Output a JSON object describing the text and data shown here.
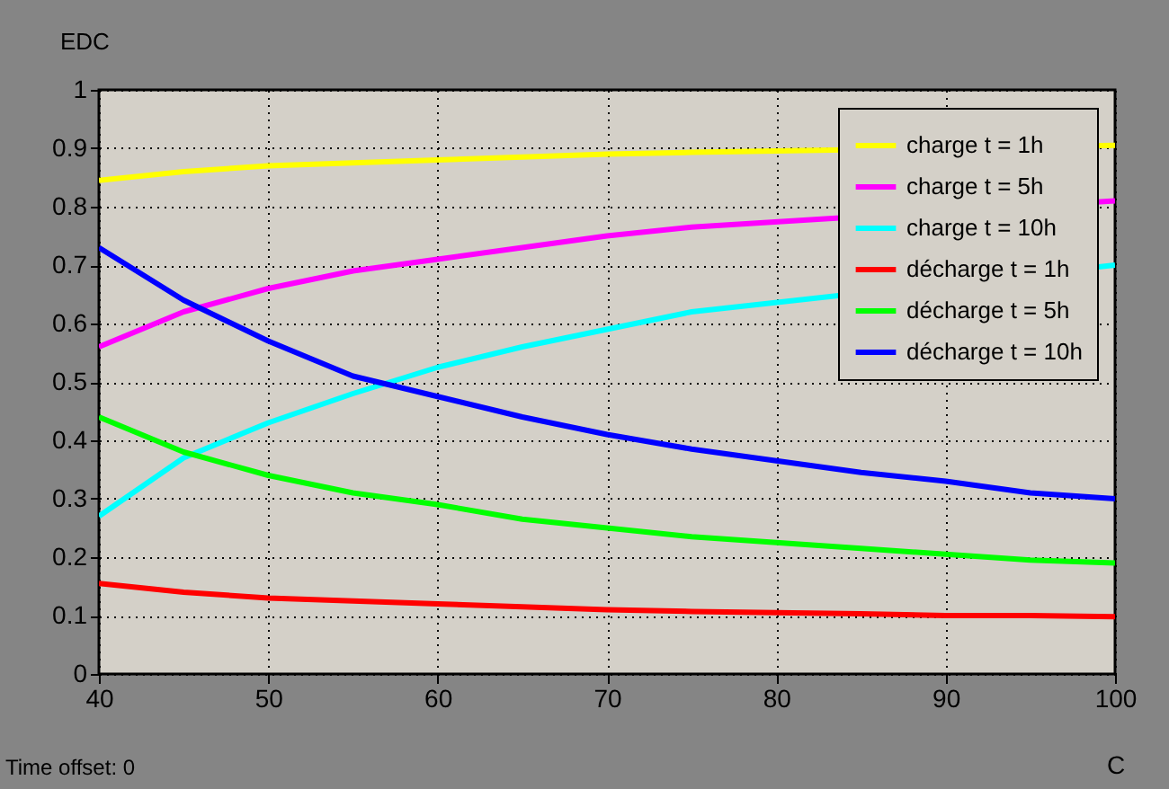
{
  "chart_data": {
    "type": "line",
    "ylabel": "EDC",
    "xlabel": "C",
    "xlim": [
      40,
      100
    ],
    "xticks": [
      40,
      50,
      60,
      70,
      80,
      90,
      100
    ],
    "ylim": [
      0,
      1
    ],
    "yticks": [
      0,
      0.1,
      0.2,
      0.3,
      0.4,
      0.5,
      0.6,
      0.7,
      0.8,
      0.9,
      1
    ],
    "grid": true,
    "legend": "top right",
    "line_style": "solid",
    "marker": "none",
    "annotations": [
      "Time offset: 0"
    ],
    "series": [
      {
        "name": "charge t = 1h",
        "color": "#ffff00",
        "x": [
          40,
          45,
          50,
          55,
          60,
          65,
          70,
          75,
          100
        ],
        "values": [
          0.845,
          0.86,
          0.87,
          0.875,
          0.88,
          0.885,
          0.89,
          0.893,
          0.905
        ]
      },
      {
        "name": "charge t = 5h",
        "color": "#ff00ff",
        "x": [
          40,
          45,
          50,
          55,
          60,
          65,
          70,
          75,
          100
        ],
        "values": [
          0.56,
          0.62,
          0.66,
          0.69,
          0.71,
          0.73,
          0.75,
          0.765,
          0.81
        ]
      },
      {
        "name": "charge t = 10h",
        "color": "#00ffff",
        "x": [
          40,
          45,
          50,
          55,
          60,
          65,
          70,
          75,
          100
        ],
        "values": [
          0.27,
          0.37,
          0.43,
          0.48,
          0.525,
          0.56,
          0.59,
          0.62,
          0.7
        ]
      },
      {
        "name": "décharge t = 1h",
        "color": "#ff0000",
        "x": [
          40,
          45,
          50,
          55,
          60,
          65,
          70,
          75,
          80,
          85,
          90,
          95,
          100
        ],
        "values": [
          0.155,
          0.14,
          0.13,
          0.125,
          0.12,
          0.115,
          0.11,
          0.107,
          0.105,
          0.103,
          0.1,
          0.1,
          0.098
        ]
      },
      {
        "name": "décharge t = 5h",
        "color": "#00ff00",
        "x": [
          40,
          45,
          50,
          55,
          60,
          65,
          70,
          75,
          80,
          85,
          90,
          95,
          100
        ],
        "values": [
          0.44,
          0.38,
          0.34,
          0.31,
          0.29,
          0.265,
          0.25,
          0.235,
          0.225,
          0.215,
          0.205,
          0.195,
          0.19
        ]
      },
      {
        "name": "décharge t = 10h",
        "color": "#0000ff",
        "x": [
          40,
          45,
          50,
          55,
          60,
          65,
          70,
          75,
          80,
          85,
          90,
          95,
          100
        ],
        "values": [
          0.73,
          0.64,
          0.57,
          0.51,
          0.475,
          0.44,
          0.41,
          0.385,
          0.365,
          0.345,
          0.33,
          0.31,
          0.3
        ]
      }
    ]
  }
}
